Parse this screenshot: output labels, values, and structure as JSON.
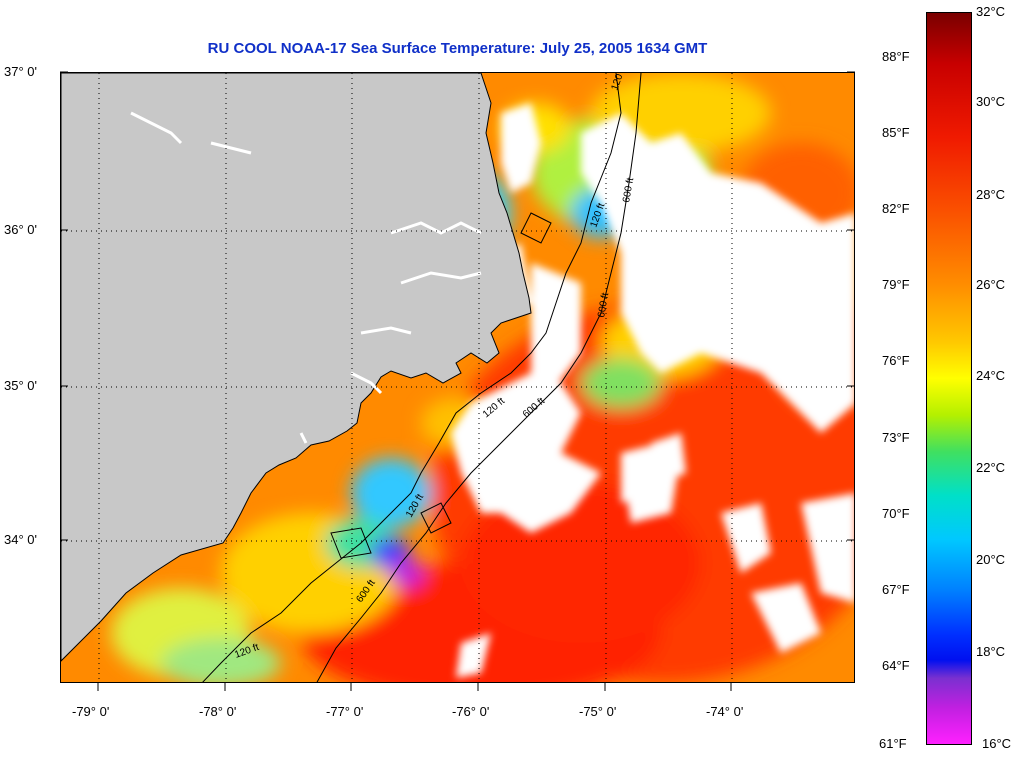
{
  "title": "RU COOL  NOAA-17  Sea Surface Temperature:  July 25, 2005 1634 GMT",
  "map": {
    "lat_labels": [
      "37° 0'",
      "36° 0'",
      "35° 0'",
      "34° 0'"
    ],
    "lon_labels": [
      "-79° 0'",
      "-78° 0'",
      "-77° 0'",
      "-76° 0'",
      "-75° 0'",
      "-74° 0'"
    ],
    "contour_labels": [
      "120 ft",
      "600 ft",
      "120 ft",
      "600 ft",
      "120 ft",
      "600 ft",
      "120 ft",
      "120 ft",
      "600 ft"
    ],
    "land_color": "#c8c8c8",
    "cloud_color": "#ffffff",
    "grid": "dotted"
  },
  "colorbar": {
    "fahrenheit": [
      "88°F",
      "85°F",
      "82°F",
      "79°F",
      "76°F",
      "73°F",
      "70°F",
      "67°F",
      "64°F",
      "61°F"
    ],
    "celsius": [
      "32°C",
      "30°C",
      "28°C",
      "26°C",
      "24°C",
      "22°C",
      "20°C",
      "18°C",
      "16°C"
    ],
    "range_c": [
      16,
      32
    ],
    "range_f": [
      61,
      90
    ]
  }
}
